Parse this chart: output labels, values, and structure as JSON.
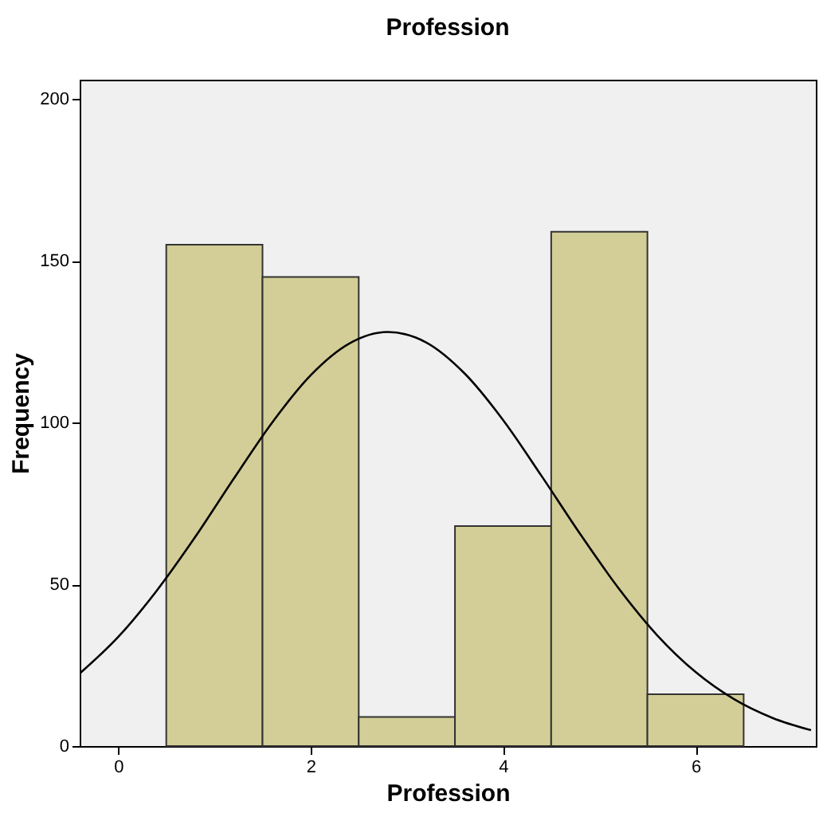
{
  "chart_data": {
    "type": "histogram",
    "title": "Profession",
    "xlabel": "Profession",
    "ylabel": "Frequency",
    "xlim": [
      -0.4,
      7.25
    ],
    "xticks": [
      0,
      2,
      4,
      6
    ],
    "ylim": [
      0,
      206
    ],
    "yticks": [
      0,
      50,
      100,
      150,
      200
    ],
    "grid": false,
    "series": [
      {
        "color": "#d3ce97",
        "bins": [
          0.5,
          1.5,
          2.5,
          3.5,
          4.5,
          5.5,
          6.5
        ],
        "values": [
          155,
          145,
          9,
          68,
          159,
          16
        ]
      },
      {
        "type": "line",
        "color": "#000000",
        "x": [
          -0.4,
          0,
          0.4,
          0.8,
          1.2,
          1.6,
          2.0,
          2.4,
          2.8,
          3.2,
          3.6,
          4.0,
          4.4,
          4.8,
          5.2,
          5.6,
          6.0,
          6.4,
          6.8,
          7.2
        ],
        "values": [
          22.4,
          33.7,
          48.0,
          64.6,
          82.6,
          100,
          114.6,
          124.4,
          128,
          124.8,
          115.2,
          100.8,
          83.5,
          65.6,
          48.8,
          34.3,
          22.9,
          14.5,
          8.7,
          4.9
        ]
      }
    ]
  }
}
